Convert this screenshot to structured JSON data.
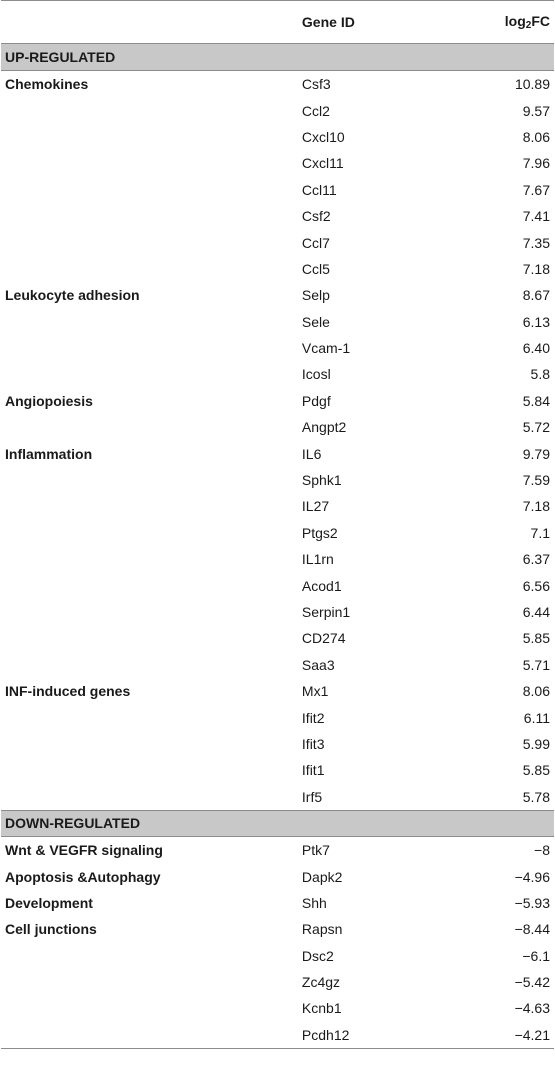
{
  "header": {
    "category": "",
    "gene_id": "Gene ID",
    "log_label_prefix": "log",
    "log_label_sub": "2",
    "log_label_suffix": "FC"
  },
  "sections": [
    {
      "title": "UP-REGULATED",
      "rows": [
        {
          "category": "Chemokines",
          "gene": "Csf3",
          "value": "10.89"
        },
        {
          "category": "",
          "gene": "Ccl2",
          "value": "9.57"
        },
        {
          "category": "",
          "gene": "Cxcl10",
          "value": "8.06"
        },
        {
          "category": "",
          "gene": "Cxcl11",
          "value": "7.96"
        },
        {
          "category": "",
          "gene": "Ccl11",
          "value": "7.67"
        },
        {
          "category": "",
          "gene": "Csf2",
          "value": "7.41"
        },
        {
          "category": "",
          "gene": "Ccl7",
          "value": "7.35"
        },
        {
          "category": "",
          "gene": "Ccl5",
          "value": "7.18"
        },
        {
          "category": "Leukocyte adhesion",
          "gene": "Selp",
          "value": "8.67"
        },
        {
          "category": "",
          "gene": "Sele",
          "value": "6.13"
        },
        {
          "category": "",
          "gene": "Vcam-1",
          "value": "6.40"
        },
        {
          "category": "",
          "gene": "Icosl",
          "value": "5.8"
        },
        {
          "category": "Angiopoiesis",
          "gene": "Pdgf",
          "value": "5.84"
        },
        {
          "category": "",
          "gene": "Angpt2",
          "value": "5.72"
        },
        {
          "category": "Inflammation",
          "gene": "IL6",
          "value": "9.79"
        },
        {
          "category": "",
          "gene": "Sphk1",
          "value": "7.59"
        },
        {
          "category": "",
          "gene": "IL27",
          "value": "7.18"
        },
        {
          "category": "",
          "gene": "Ptgs2",
          "value": "7.1"
        },
        {
          "category": "",
          "gene": "IL1rn",
          "value": "6.37"
        },
        {
          "category": "",
          "gene": "Acod1",
          "value": "6.56"
        },
        {
          "category": "",
          "gene": "Serpin1",
          "value": "6.44"
        },
        {
          "category": "",
          "gene": "CD274",
          "value": "5.85"
        },
        {
          "category": "",
          "gene": "Saa3",
          "value": "5.71"
        },
        {
          "category": "INF-induced genes",
          "gene": "Mx1",
          "value": "8.06"
        },
        {
          "category": "",
          "gene": "Ifit2",
          "value": "6.11"
        },
        {
          "category": "",
          "gene": "Ifit3",
          "value": "5.99"
        },
        {
          "category": "",
          "gene": "Ifit1",
          "value": "5.85"
        },
        {
          "category": "",
          "gene": "Irf5",
          "value": "5.78"
        }
      ]
    },
    {
      "title": "DOWN-REGULATED",
      "rows": [
        {
          "category": "Wnt & VEGFR signaling",
          "gene": "Ptk7",
          "value": "−8"
        },
        {
          "category": "Apoptosis &Autophagy",
          "gene": "Dapk2",
          "value": "−4.96"
        },
        {
          "category": "Development",
          "gene": "Shh",
          "value": "−5.93"
        },
        {
          "category": "Cell junctions",
          "gene": "Rapsn",
          "value": "−8.44"
        },
        {
          "category": "",
          "gene": "Dsc2",
          "value": "−6.1"
        },
        {
          "category": "",
          "gene": "Zc4gz",
          "value": "−5.42"
        },
        {
          "category": "",
          "gene": "Kcnb1",
          "value": "−4.63"
        },
        {
          "category": "",
          "gene": "Pcdh12",
          "value": "−4.21"
        }
      ]
    }
  ]
}
